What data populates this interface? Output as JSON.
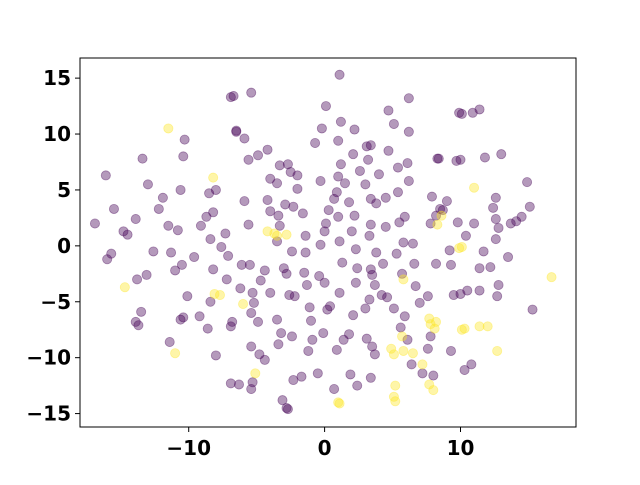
{
  "chart_data": {
    "type": "scatter",
    "title": "",
    "xlabel": "",
    "ylabel": "",
    "xlim": [
      -18.0,
      18.5
    ],
    "ylim": [
      -16.2,
      16.8
    ],
    "xticks": [
      -10,
      0,
      10
    ],
    "xtick_labels": [
      "−10",
      "0",
      "10"
    ],
    "yticks": [
      -15,
      -10,
      -5,
      0,
      5,
      10,
      15
    ],
    "ytick_labels": [
      "−15",
      "−10",
      "−5",
      "0",
      "5",
      "10",
      "15"
    ],
    "grid": false,
    "legend": "none",
    "colors": {
      "purple": "#440154",
      "yellow": "#fde725"
    },
    "marker_alpha": 0.4,
    "series": [
      {
        "color": "purple",
        "points": [
          [
            -16.1,
            6.3
          ],
          [
            -15.5,
            3.3
          ],
          [
            -16.9,
            2.0
          ],
          [
            -14.8,
            1.3
          ],
          [
            -16.0,
            -1.2
          ],
          [
            -15.7,
            -0.7
          ],
          [
            -13.9,
            2.4
          ],
          [
            -14.5,
            1.0
          ],
          [
            -13.4,
            7.8
          ],
          [
            -13.0,
            5.5
          ],
          [
            -11.9,
            4.3
          ],
          [
            -12.2,
            3.3
          ],
          [
            -11.5,
            1.8
          ],
          [
            -12.6,
            -0.5
          ],
          [
            -13.8,
            -3.0
          ],
          [
            -13.1,
            -2.6
          ],
          [
            -13.5,
            -5.9
          ],
          [
            -13.9,
            -6.8
          ],
          [
            -13.7,
            -7.1
          ],
          [
            -11.4,
            -8.6
          ],
          [
            -11.0,
            -2.2
          ],
          [
            -10.5,
            -1.7
          ],
          [
            -10.1,
            -4.5
          ],
          [
            -10.4,
            -6.4
          ],
          [
            -10.6,
            -6.6
          ],
          [
            -11.3,
            -0.6
          ],
          [
            -10.8,
            1.4
          ],
          [
            -10.6,
            5.0
          ],
          [
            -10.3,
            9.5
          ],
          [
            -10.4,
            8.0
          ],
          [
            -9.6,
            -1.0
          ],
          [
            -9.1,
            1.8
          ],
          [
            -8.4,
            0.6
          ],
          [
            -8.7,
            2.6
          ],
          [
            -8.5,
            4.7
          ],
          [
            -8.2,
            -2.1
          ],
          [
            -8.4,
            -5.0
          ],
          [
            -9.2,
            -6.3
          ],
          [
            -8.6,
            -7.4
          ],
          [
            -8.0,
            -9.8
          ],
          [
            -8.2,
            3.0
          ],
          [
            -8.0,
            5.0
          ],
          [
            -7.6,
            -0.1
          ],
          [
            -7.3,
            1.1
          ],
          [
            -7.1,
            -0.9
          ],
          [
            -7.2,
            -3.0
          ],
          [
            -6.8,
            -6.8
          ],
          [
            -6.9,
            -7.2
          ],
          [
            -6.9,
            -12.3
          ],
          [
            -6.5,
            10.3
          ],
          [
            -6.5,
            10.2
          ],
          [
            -6.9,
            13.3
          ],
          [
            -6.7,
            13.4
          ],
          [
            -5.4,
            13.7
          ],
          [
            -5.9,
            9.6
          ],
          [
            -5.6,
            7.7
          ],
          [
            -4.9,
            8.1
          ],
          [
            -4.2,
            8.6
          ],
          [
            -5.9,
            4.0
          ],
          [
            -5.6,
            1.9
          ],
          [
            -6.1,
            -1.7
          ],
          [
            -5.5,
            -1.7
          ],
          [
            -6.2,
            -3.8
          ],
          [
            -5.3,
            -4.2
          ],
          [
            -5.2,
            -5.1
          ],
          [
            -5.4,
            -6.0
          ],
          [
            -4.9,
            -6.8
          ],
          [
            -5.4,
            -9.0
          ],
          [
            -4.8,
            -9.7
          ],
          [
            -4.4,
            -10.2
          ],
          [
            -5.3,
            -12.2
          ],
          [
            -5.4,
            -12.8
          ],
          [
            -6.3,
            -12.4
          ],
          [
            -4.7,
            -3.1
          ],
          [
            -4.4,
            -2.2
          ],
          [
            -4.0,
            -4.2
          ],
          [
            -3.5,
            -6.6
          ],
          [
            -3.2,
            -7.8
          ],
          [
            -3.4,
            -8.8
          ],
          [
            -3.1,
            -13.8
          ],
          [
            -2.7,
            -14.6
          ],
          [
            -2.8,
            -14.5
          ],
          [
            -2.3,
            -12.0
          ],
          [
            -2.4,
            -8.1
          ],
          [
            -2.2,
            -4.5
          ],
          [
            -2.6,
            -4.4
          ],
          [
            -3.0,
            -2.0
          ],
          [
            -2.8,
            -2.5
          ],
          [
            -2.4,
            -0.5
          ],
          [
            -3.5,
            0.4
          ],
          [
            -3.3,
            1.8
          ],
          [
            -3.4,
            2.7
          ],
          [
            -2.9,
            3.7
          ],
          [
            -4.0,
            3.1
          ],
          [
            -4.2,
            4.1
          ],
          [
            -4.0,
            6.0
          ],
          [
            -3.5,
            5.6
          ],
          [
            -3.3,
            7.2
          ],
          [
            -2.7,
            7.3
          ],
          [
            -2.5,
            6.6
          ],
          [
            -2.0,
            6.3
          ],
          [
            -2.0,
            5.1
          ],
          [
            -2.3,
            3.5
          ],
          [
            -1.6,
            2.9
          ],
          [
            -1.4,
            0.9
          ],
          [
            -1.4,
            -0.6
          ],
          [
            -1.5,
            -2.4
          ],
          [
            -1.3,
            -3.5
          ],
          [
            -1.1,
            -5.5
          ],
          [
            -1.0,
            -6.7
          ],
          [
            -0.9,
            -8.4
          ],
          [
            -1.7,
            -11.7
          ],
          [
            -0.5,
            -11.4
          ],
          [
            -1.2,
            -9.4
          ],
          [
            -0.1,
            -7.8
          ],
          [
            0.2,
            -5.7
          ],
          [
            0.4,
            -5.4
          ],
          [
            0.0,
            -3.3
          ],
          [
            -0.4,
            -2.7
          ],
          [
            -0.3,
            0.1
          ],
          [
            0.0,
            1.3
          ],
          [
            0.1,
            2.0
          ],
          [
            0.3,
            3.2
          ],
          [
            0.7,
            4.2
          ],
          [
            -0.3,
            5.8
          ],
          [
            -0.7,
            9.2
          ],
          [
            -0.2,
            10.5
          ],
          [
            0.1,
            12.5
          ],
          [
            1.1,
            15.3
          ],
          [
            1.2,
            11.1
          ],
          [
            2.2,
            10.4
          ],
          [
            2.1,
            8.2
          ],
          [
            3.1,
            8.9
          ],
          [
            3.4,
            9.0
          ],
          [
            3.2,
            7.7
          ],
          [
            2.6,
            6.7
          ],
          [
            3.0,
            5.5
          ],
          [
            3.4,
            4.2
          ],
          [
            3.8,
            3.8
          ],
          [
            3.4,
            1.9
          ],
          [
            3.3,
            0.9
          ],
          [
            3.8,
            -0.6
          ],
          [
            3.4,
            -2.1
          ],
          [
            3.5,
            -2.6
          ],
          [
            3.7,
            -3.5
          ],
          [
            3.3,
            -4.8
          ],
          [
            3.0,
            -5.6
          ],
          [
            3.1,
            -8.3
          ],
          [
            3.5,
            -9.0
          ],
          [
            3.7,
            -9.7
          ],
          [
            3.4,
            -11.8
          ],
          [
            2.4,
            -12.5
          ],
          [
            1.9,
            -11.5
          ],
          [
            1.4,
            -8.4
          ],
          [
            1.8,
            -7.9
          ],
          [
            2.1,
            -6.2
          ],
          [
            2.3,
            -3.3
          ],
          [
            2.4,
            -2.0
          ],
          [
            2.3,
            -0.3
          ],
          [
            2.0,
            1.3
          ],
          [
            2.2,
            2.7
          ],
          [
            1.8,
            3.9
          ],
          [
            1.5,
            5.6
          ],
          [
            1.2,
            7.3
          ],
          [
            1.0,
            9.4
          ],
          [
            1.0,
            6.2
          ],
          [
            0.9,
            4.8
          ],
          [
            1.0,
            2.6
          ],
          [
            1.1,
            0.4
          ],
          [
            1.3,
            -1.5
          ],
          [
            1.1,
            -4.2
          ],
          [
            0.9,
            -9.3
          ],
          [
            0.7,
            -12.8
          ],
          [
            4.2,
            -4.4
          ],
          [
            4.6,
            -4.6
          ],
          [
            4.3,
            -1.6
          ],
          [
            4.5,
            1.7
          ],
          [
            4.5,
            4.3
          ],
          [
            4.0,
            6.4
          ],
          [
            4.7,
            8.5
          ],
          [
            5.1,
            10.9
          ],
          [
            4.7,
            12.1
          ],
          [
            5.4,
            7.0
          ],
          [
            5.4,
            4.8
          ],
          [
            5.5,
            2.1
          ],
          [
            5.8,
            0.3
          ],
          [
            5.3,
            -0.7
          ],
          [
            5.7,
            -2.5
          ],
          [
            5.1,
            -5.6
          ],
          [
            5.9,
            -6.3
          ],
          [
            5.6,
            -7.3
          ],
          [
            6.1,
            -8.4
          ],
          [
            6.2,
            13.2
          ],
          [
            6.2,
            10.2
          ],
          [
            6.1,
            7.4
          ],
          [
            6.2,
            5.8
          ],
          [
            5.9,
            2.6
          ],
          [
            6.5,
            0.2
          ],
          [
            6.6,
            -1.6
          ],
          [
            6.7,
            -3.6
          ],
          [
            7.0,
            -5.1
          ],
          [
            7.6,
            -4.5
          ],
          [
            7.8,
            -8.1
          ],
          [
            7.6,
            -9.2
          ],
          [
            6.4,
            -10.6
          ],
          [
            7.2,
            -11.4
          ],
          [
            8.0,
            -11.6
          ],
          [
            7.8,
            2.0
          ],
          [
            8.2,
            2.7
          ],
          [
            8.2,
            -1.6
          ],
          [
            7.9,
            4.4
          ],
          [
            8.3,
            7.8
          ],
          [
            8.4,
            7.8
          ],
          [
            8.5,
            3.3
          ],
          [
            8.7,
            3.2
          ],
          [
            9.0,
            4.0
          ],
          [
            9.2,
            -0.4
          ],
          [
            9.3,
            -1.7
          ],
          [
            9.8,
            2.1
          ],
          [
            9.7,
            7.6
          ],
          [
            10.0,
            7.7
          ],
          [
            9.9,
            11.9
          ],
          [
            10.1,
            11.8
          ],
          [
            10.9,
            11.9
          ],
          [
            11.4,
            12.2
          ],
          [
            11.8,
            7.9
          ],
          [
            11.7,
            -0.5
          ],
          [
            12.2,
            -1.9
          ],
          [
            12.6,
            0.6
          ],
          [
            12.6,
            4.3
          ],
          [
            12.4,
            3.4
          ],
          [
            12.6,
            2.4
          ],
          [
            12.8,
            1.6
          ],
          [
            13.0,
            8.2
          ],
          [
            13.5,
            -1.0
          ],
          [
            13.7,
            2.0
          ],
          [
            14.1,
            2.2
          ],
          [
            14.5,
            2.6
          ],
          [
            14.9,
            5.7
          ],
          [
            15.1,
            3.5
          ],
          [
            15.3,
            -5.7
          ],
          [
            12.8,
            -3.5
          ],
          [
            12.7,
            -4.5
          ],
          [
            10.8,
            -10.6
          ],
          [
            11.4,
            -2.0
          ],
          [
            11.4,
            -4.0
          ],
          [
            10.5,
            -4.0
          ],
          [
            10.0,
            -4.3
          ],
          [
            9.5,
            -4.4
          ],
          [
            9.3,
            -9.4
          ],
          [
            10.3,
            -11.1
          ],
          [
            10.4,
            0.9
          ],
          [
            11.0,
            2.0
          ]
        ]
      },
      {
        "color": "yellow",
        "points": [
          [
            -11.5,
            10.5
          ],
          [
            -8.2,
            6.1
          ],
          [
            -11.0,
            -9.6
          ],
          [
            -14.7,
            -3.7
          ],
          [
            -8.1,
            -4.3
          ],
          [
            -7.7,
            -4.4
          ],
          [
            -6.0,
            -5.2
          ],
          [
            -5.1,
            -11.4
          ],
          [
            -4.2,
            1.3
          ],
          [
            -3.7,
            1.1
          ],
          [
            -3.5,
            0.9
          ],
          [
            -2.8,
            1.0
          ],
          [
            1.1,
            -14.1
          ],
          [
            1.0,
            -14.0
          ],
          [
            4.9,
            -9.2
          ],
          [
            5.1,
            -9.7
          ],
          [
            5.2,
            -12.5
          ],
          [
            5.1,
            -13.5
          ],
          [
            5.2,
            -13.9
          ],
          [
            5.8,
            -9.4
          ],
          [
            5.7,
            -8.1
          ],
          [
            5.8,
            -3.0
          ],
          [
            6.5,
            -9.6
          ],
          [
            7.2,
            -10.6
          ],
          [
            7.7,
            -6.5
          ],
          [
            7.8,
            -7.0
          ],
          [
            8.1,
            -7.4
          ],
          [
            7.7,
            -12.4
          ],
          [
            8.0,
            -12.9
          ],
          [
            8.2,
            -6.8
          ],
          [
            8.6,
            2.7
          ],
          [
            8.3,
            1.9
          ],
          [
            10.1,
            -0.1
          ],
          [
            9.9,
            -0.2
          ],
          [
            10.3,
            -7.4
          ],
          [
            10.1,
            -7.5
          ],
          [
            11.4,
            -7.2
          ],
          [
            12.0,
            -7.2
          ],
          [
            12.7,
            -9.4
          ],
          [
            11.0,
            5.2
          ],
          [
            16.7,
            -2.8
          ]
        ]
      }
    ]
  }
}
